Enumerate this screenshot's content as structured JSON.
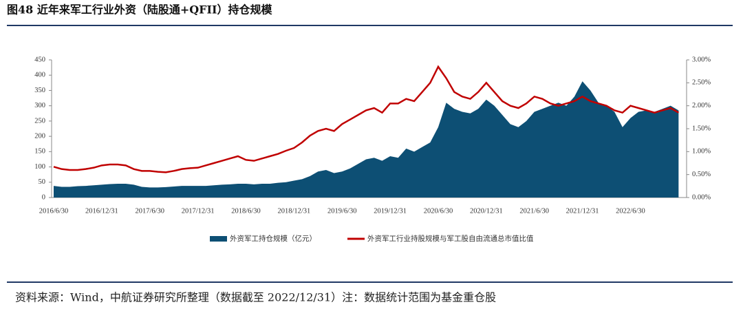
{
  "chart_data": {
    "type": "area_line",
    "title": "图48 近年来军工行业外资（陆股通+QFII）持仓规模",
    "source": "资料来源：Wind，中航证券研究所整理（数据截至 2022/12/31）注：数据统计范围为基金重仓股",
    "categories": [
      "2016/6/30",
      null,
      null,
      null,
      null,
      null,
      "2016/12/31",
      null,
      null,
      null,
      null,
      null,
      "2017/6/30",
      null,
      null,
      null,
      null,
      null,
      "2017/12/31",
      null,
      null,
      null,
      null,
      null,
      "2018/6/30",
      null,
      null,
      null,
      null,
      null,
      "2018/12/31",
      null,
      null,
      null,
      null,
      null,
      "2019/6/30",
      null,
      null,
      null,
      null,
      null,
      "2019/12/31",
      null,
      null,
      null,
      null,
      null,
      "2020/6/30",
      null,
      null,
      null,
      null,
      null,
      "2020/12/31",
      null,
      null,
      null,
      null,
      null,
      "2021/6/30",
      null,
      null,
      null,
      null,
      null,
      "2021/12/31",
      null,
      null,
      null,
      null,
      null,
      "2022/6/30",
      null,
      null,
      null,
      null,
      null,
      null
    ],
    "series": [
      {
        "name": "外资军工持仓规模（亿元）",
        "color": "#0d4f74",
        "values": [
          38,
          35,
          35,
          37,
          38,
          40,
          42,
          44,
          45,
          45,
          42,
          35,
          33,
          33,
          34,
          36,
          38,
          38,
          38,
          38,
          40,
          42,
          43,
          45,
          45,
          43,
          45,
          45,
          48,
          50,
          55,
          60,
          70,
          85,
          90,
          80,
          85,
          95,
          110,
          125,
          130,
          120,
          135,
          130,
          160,
          150,
          165,
          180,
          230,
          310,
          290,
          280,
          275,
          290,
          320,
          300,
          270,
          240,
          230,
          250,
          280,
          290,
          300,
          310,
          300,
          330,
          380,
          350,
          310,
          300,
          280,
          230,
          260,
          280,
          285,
          280,
          290,
          300,
          285
        ]
      },
      {
        "name": "外资军工行业持股规模与军工股自由流通总市值比值",
        "color": "#c00000",
        "axis": "y2",
        "values": [
          0.67,
          0.62,
          0.6,
          0.6,
          0.62,
          0.65,
          0.7,
          0.72,
          0.72,
          0.7,
          0.62,
          0.58,
          0.58,
          0.56,
          0.55,
          0.58,
          0.62,
          0.64,
          0.65,
          0.7,
          0.75,
          0.8,
          0.85,
          0.9,
          0.82,
          0.8,
          0.85,
          0.9,
          0.95,
          1.02,
          1.08,
          1.2,
          1.35,
          1.45,
          1.5,
          1.45,
          1.6,
          1.7,
          1.8,
          1.9,
          1.95,
          1.85,
          2.05,
          2.05,
          2.15,
          2.1,
          2.3,
          2.5,
          2.85,
          2.6,
          2.3,
          2.2,
          2.15,
          2.3,
          2.5,
          2.3,
          2.1,
          2.0,
          1.95,
          2.05,
          2.2,
          2.15,
          2.05,
          2.0,
          2.05,
          2.1,
          2.2,
          2.1,
          2.05,
          2.0,
          1.9,
          1.85,
          2.0,
          1.95,
          1.9,
          1.85,
          1.9,
          1.95,
          1.85
        ]
      }
    ],
    "ylim": [
      0,
      450
    ],
    "yticks": [
      0,
      50,
      100,
      150,
      200,
      250,
      300,
      350,
      400,
      450
    ],
    "y2lim": [
      0,
      3
    ],
    "y2ticks": [
      {
        "value": 0,
        "label": "0.00%"
      },
      {
        "value": 0.5,
        "label": "0.50%"
      },
      {
        "value": 1,
        "label": "1.00%"
      },
      {
        "value": 1.5,
        "label": "1.50%"
      },
      {
        "value": 2,
        "label": "2.00%"
      },
      {
        "value": 2.5,
        "label": "2.50%"
      },
      {
        "value": 3,
        "label": "3.00%"
      }
    ]
  }
}
